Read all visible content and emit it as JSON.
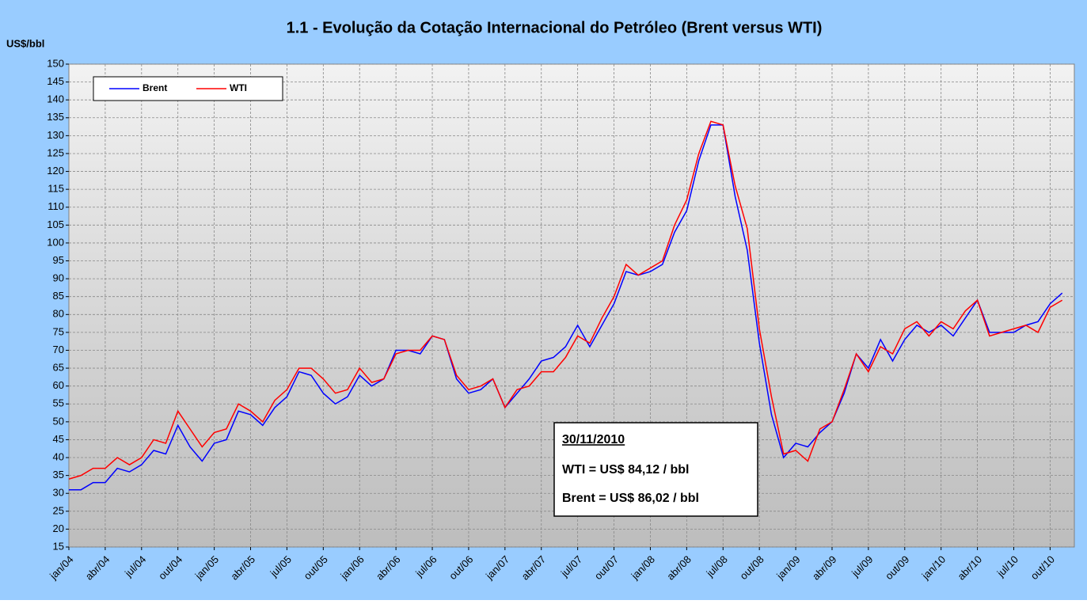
{
  "chart_data": {
    "type": "line",
    "title": "1.1 - Evolução da Cotação Internacional do Petróleo (Brent versus WTI)",
    "y_label": "US$/bbl",
    "categories": [
      "jan/04",
      null,
      null,
      "abr/04",
      null,
      null,
      "jul/04",
      null,
      null,
      "out/04",
      null,
      null,
      "jan/05",
      null,
      null,
      "abr/05",
      null,
      null,
      "jul/05",
      null,
      null,
      "out/05",
      null,
      null,
      "jan/06",
      null,
      null,
      "abr/06",
      null,
      null,
      "jul/06",
      null,
      null,
      "out/06",
      null,
      null,
      "jan/07",
      null,
      null,
      "abr/07",
      null,
      null,
      "jul/07",
      null,
      null,
      "out/07",
      null,
      null,
      "jan/08",
      null,
      null,
      "abr/08",
      null,
      null,
      "jul/08",
      null,
      null,
      "out/08",
      null,
      null,
      "jan/09",
      null,
      null,
      "abr/09",
      null,
      null,
      "jul/09",
      null,
      null,
      "out/09",
      null,
      null,
      "jan/10",
      null,
      null,
      "abr/10",
      null,
      null,
      "jul/10",
      null,
      null,
      "out/10",
      null
    ],
    "series": [
      {
        "name": "Brent",
        "color": "#0000ff",
        "values": [
          31,
          31,
          33,
          33,
          37,
          36,
          38,
          42,
          41,
          49,
          43,
          39,
          44,
          45,
          53,
          52,
          49,
          54,
          57,
          64,
          63,
          58,
          55,
          57,
          63,
          60,
          62,
          70,
          70,
          69,
          74,
          73,
          62,
          58,
          59,
          62,
          54,
          58,
          62,
          67,
          68,
          71,
          77,
          71,
          77,
          83,
          92,
          91,
          92,
          94,
          103,
          109,
          123,
          133,
          133,
          113,
          98,
          72,
          52,
          40,
          44,
          43,
          47,
          50,
          58,
          69,
          65,
          73,
          67,
          73,
          77,
          75,
          77,
          74,
          79,
          84,
          75,
          75,
          75,
          77,
          78,
          83,
          86
        ]
      },
      {
        "name": "WTI",
        "color": "#ff0000",
        "values": [
          34,
          35,
          37,
          37,
          40,
          38,
          40,
          45,
          44,
          53,
          48,
          43,
          47,
          48,
          55,
          53,
          50,
          56,
          59,
          65,
          65,
          62,
          58,
          59,
          65,
          61,
          62,
          69,
          70,
          70,
          74,
          73,
          63,
          59,
          60,
          62,
          54,
          59,
          60,
          64,
          64,
          68,
          74,
          72,
          79,
          85,
          94,
          91,
          93,
          95,
          105,
          112,
          125,
          134,
          133,
          116,
          104,
          76,
          57,
          41,
          42,
          39,
          48,
          50,
          59,
          69,
          64,
          71,
          69,
          76,
          78,
          74,
          78,
          76,
          81,
          84,
          74,
          75,
          76,
          77,
          75,
          82,
          84
        ]
      }
    ],
    "ylim": [
      15,
      150
    ],
    "yticks": [
      15,
      20,
      25,
      30,
      35,
      40,
      45,
      50,
      55,
      60,
      65,
      70,
      75,
      80,
      85,
      90,
      95,
      100,
      105,
      110,
      115,
      120,
      125,
      130,
      135,
      140,
      145,
      150
    ],
    "grid": true,
    "legend": "top-left",
    "annotation": {
      "date": "30/11/2010",
      "wti": "WTI = US$ 84,12 / bbl",
      "brent": "Brent = US$ 86,02 / bbl"
    }
  }
}
